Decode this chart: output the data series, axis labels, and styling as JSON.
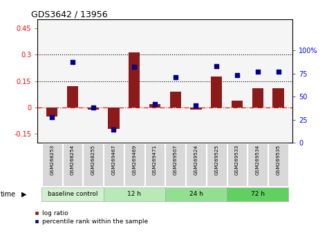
{
  "title": "GDS3642 / 13956",
  "samples": [
    "GSM268253",
    "GSM268254",
    "GSM268255",
    "GSM269467",
    "GSM269469",
    "GSM269471",
    "GSM269507",
    "GSM269524",
    "GSM269525",
    "GSM269533",
    "GSM269534",
    "GSM269535"
  ],
  "log_ratio": [
    -0.05,
    0.12,
    -0.01,
    -0.12,
    0.315,
    0.02,
    0.09,
    -0.01,
    0.175,
    0.04,
    0.11,
    0.11
  ],
  "percentile_rank": [
    28,
    87,
    38,
    14,
    82,
    42,
    71,
    40,
    83,
    73,
    77,
    77
  ],
  "group_labels": [
    "baseline control",
    "12 h",
    "24 h",
    "72 h"
  ],
  "group_starts": [
    0,
    3,
    6,
    9
  ],
  "group_ends": [
    3,
    6,
    9,
    12
  ],
  "group_colors": [
    "#d0f0d0",
    "#b8eab8",
    "#90e090",
    "#60d060"
  ],
  "ylim_left": [
    -0.2,
    0.5
  ],
  "ylim_right": [
    0,
    133.33
  ],
  "yticks_left": [
    -0.15,
    0.0,
    0.15,
    0.3,
    0.45
  ],
  "yticks_left_labels": [
    "-0.15",
    "0",
    "0.15",
    "0.3",
    "0.45"
  ],
  "yticks_right": [
    0,
    25,
    50,
    75,
    100
  ],
  "yticks_right_labels": [
    "0",
    "25",
    "50",
    "75",
    "100%"
  ],
  "hlines": [
    0.15,
    0.3
  ],
  "bar_color": "#8B1A1A",
  "dot_color": "#00008B",
  "plot_bg": "#f5f5f5",
  "legend_log_ratio": "log ratio",
  "legend_percentile": "percentile rank within the sample",
  "sample_bg": "#d8d8d8"
}
